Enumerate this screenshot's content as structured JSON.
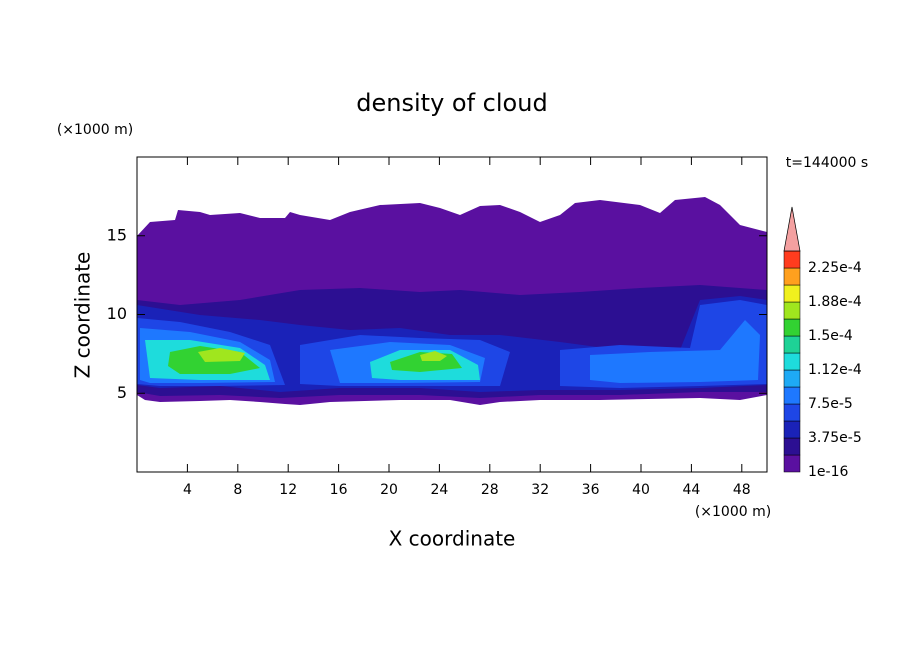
{
  "chart_data": {
    "type": "contour",
    "title": "density of cloud",
    "x_label": "X coordinate",
    "y_label": "Z coordinate",
    "x_unit": "(×1000 m)",
    "y_unit": "(×1000 m)",
    "time_label": "t=144000 s",
    "xlim": [
      0,
      50
    ],
    "ylim": [
      0,
      20
    ],
    "xticks": [
      4,
      8,
      12,
      16,
      20,
      24,
      28,
      32,
      36,
      40,
      44,
      48
    ],
    "yticks": [
      5,
      10,
      15
    ],
    "colorbar": {
      "levels": [
        1e-16,
        1.875e-05,
        {
          "value": 3.75e-05,
          "label": "3.75e-5"
        },
        5.625e-05,
        {
          "value": 7.5e-05,
          "label": "7.5e-5"
        },
        9.375e-05,
        {
          "value": 0.000112,
          "label": "1.12e-4"
        },
        0.00013125,
        {
          "value": 0.00015,
          "label": "1.5e-4"
        },
        0.00016875,
        {
          "value": 0.000188,
          "label": "1.88e-4"
        },
        0.00020625,
        {
          "value": 0.000225,
          "label": "2.25e-4"
        }
      ],
      "colors": [
        "#5a10a0",
        "#2c0f92",
        "#1a22b8",
        "#1e46e6",
        "#1e78ff",
        "#1eaaf5",
        "#1edcdc",
        "#1ed296",
        "#32d232",
        "#a0e61e",
        "#f0f01e",
        "#ffa01e",
        "#ff3c1e"
      ],
      "extend_color": "#f4a0a0"
    }
  }
}
